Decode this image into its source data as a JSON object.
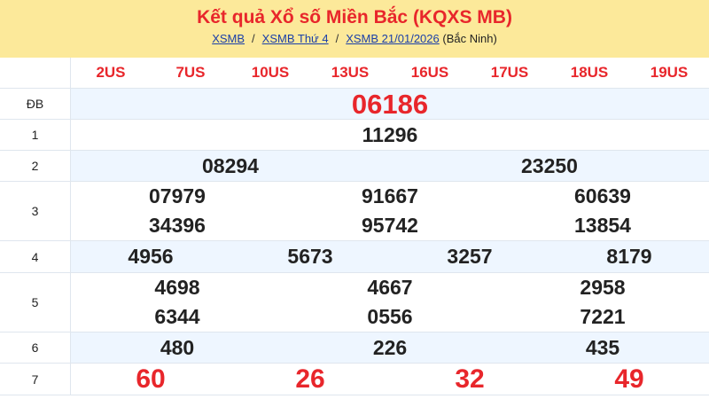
{
  "header": {
    "title": "Kết quả Xổ số Miền Bắc (KQXS MB)",
    "crumbs": [
      "XSMB",
      "XSMB Thứ 4",
      "XSMB 21/01/2026"
    ],
    "region": "(Bắc Ninh)"
  },
  "codes": [
    "2US",
    "7US",
    "10US",
    "13US",
    "16US",
    "17US",
    "18US",
    "19US"
  ],
  "prizes": [
    {
      "label": "ĐB",
      "numbers": [
        "06186"
      ]
    },
    {
      "label": "1",
      "numbers": [
        "11296"
      ]
    },
    {
      "label": "2",
      "numbers": [
        "08294",
        "23250"
      ]
    },
    {
      "label": "3",
      "numbers": [
        "07979",
        "91667",
        "60639",
        "34396",
        "95742",
        "13854"
      ]
    },
    {
      "label": "4",
      "numbers": [
        "4956",
        "5673",
        "3257",
        "8179"
      ]
    },
    {
      "label": "5",
      "numbers": [
        "4698",
        "4667",
        "2958",
        "6344",
        "0556",
        "7221"
      ]
    },
    {
      "label": "6",
      "numbers": [
        "480",
        "226",
        "435"
      ]
    },
    {
      "label": "7",
      "numbers": [
        "60",
        "26",
        "32",
        "49"
      ]
    }
  ],
  "colors": {
    "accent": "#e8262b",
    "header_bg": "#fce99a",
    "alt_row": "#eef6ff",
    "link": "#1a3fa8"
  }
}
